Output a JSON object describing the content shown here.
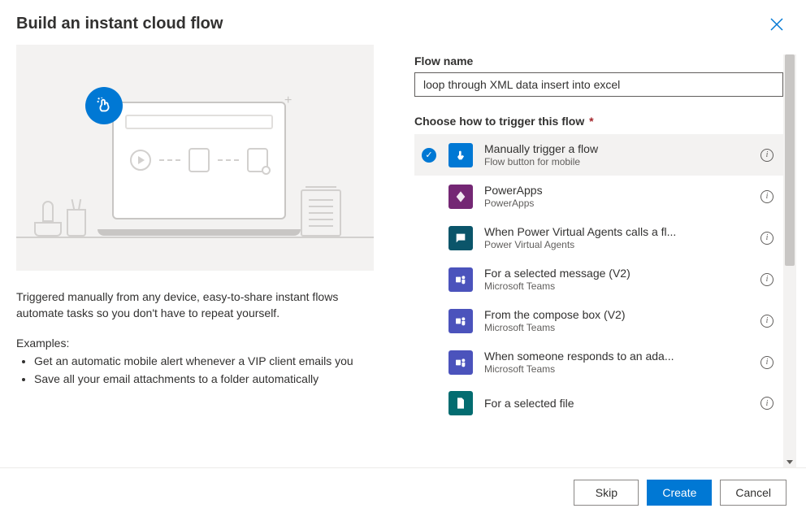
{
  "dialog": {
    "title": "Build an instant cloud flow"
  },
  "form": {
    "flow_name_label": "Flow name",
    "flow_name_value": "loop through XML data insert into excel",
    "trigger_label": "Choose how to trigger this flow",
    "trigger_required_marker": "*"
  },
  "description": "Triggered manually from any device, easy-to-share instant flows automate tasks so you don't have to repeat yourself.",
  "examples_label": "Examples:",
  "examples": [
    "Get an automatic mobile alert whenever a VIP client emails you",
    "Save all your email attachments to a folder automatically"
  ],
  "triggers": [
    {
      "title": "Manually trigger a flow",
      "subtitle": "Flow button for mobile",
      "icon_bg": "#0078d4",
      "icon_glyph": "touch",
      "selected": true
    },
    {
      "title": "PowerApps",
      "subtitle": "PowerApps",
      "icon_bg": "#742774",
      "icon_glyph": "diamond",
      "selected": false
    },
    {
      "title": "When Power Virtual Agents calls a fl...",
      "subtitle": "Power Virtual Agents",
      "icon_bg": "#0b556a",
      "icon_glyph": "chat",
      "selected": false
    },
    {
      "title": "For a selected message (V2)",
      "subtitle": "Microsoft Teams",
      "icon_bg": "#4b53bc",
      "icon_glyph": "teams",
      "selected": false
    },
    {
      "title": "From the compose box (V2)",
      "subtitle": "Microsoft Teams",
      "icon_bg": "#4b53bc",
      "icon_glyph": "teams",
      "selected": false
    },
    {
      "title": "When someone responds to an ada...",
      "subtitle": "Microsoft Teams",
      "icon_bg": "#4b53bc",
      "icon_glyph": "teams",
      "selected": false
    },
    {
      "title": "For a selected file",
      "subtitle": "",
      "icon_bg": "#036c70",
      "icon_glyph": "file",
      "selected": false
    }
  ],
  "footer": {
    "skip": "Skip",
    "create": "Create",
    "cancel": "Cancel"
  },
  "colors": {
    "primary": "#0078d4",
    "selected_bg": "#f3f2f1",
    "text": "#323130",
    "subtext": "#605e5c",
    "border": "#8a8886"
  }
}
